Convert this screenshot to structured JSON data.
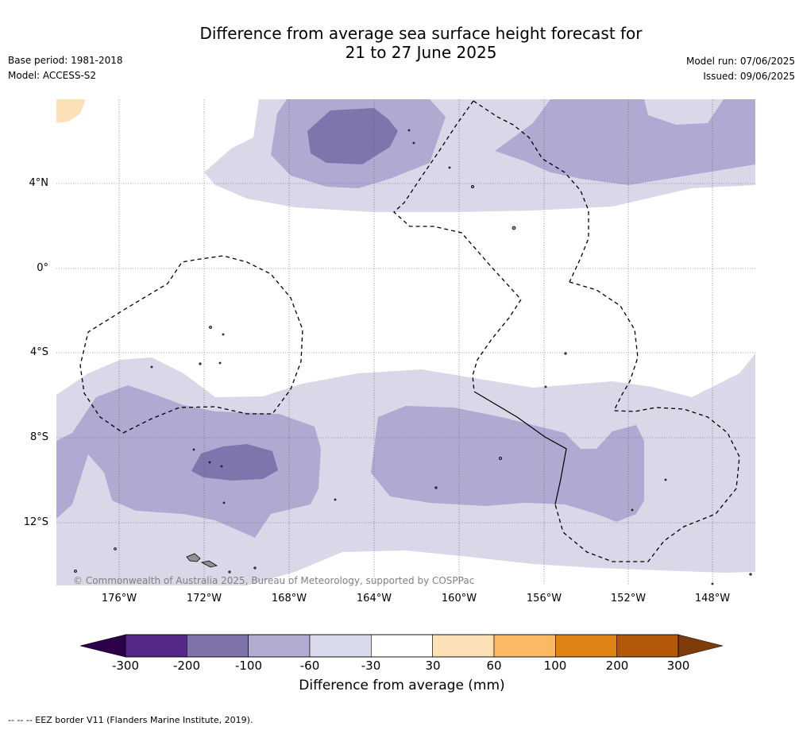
{
  "header": {
    "title_line1": "Difference from average sea surface height forecast for",
    "title_line2": "21 to 27 June 2025",
    "base_period": "Base period: 1981-2018",
    "model": "Model: ACCESS-S2",
    "model_run": "Model run: 07/06/2025",
    "issued": "Issued: 09/06/2025"
  },
  "map": {
    "lat_labels": [
      "4°N",
      "0°",
      "4°S",
      "8°S",
      "12°S"
    ],
    "lon_labels": [
      "176°W",
      "172°W",
      "168°W",
      "164°W",
      "160°W",
      "156°W",
      "152°W",
      "148°W"
    ],
    "copyright": "© Commonwealth of Australia 2025, Bureau of Meteorology, supported by COSPPac",
    "grid": true,
    "colors": {
      "light_purple": "#d8d8e9",
      "mid_purple": "#b0aad2",
      "dark_purple": "#8074ad",
      "light_orange": "#fee0b6",
      "land": "#909090"
    }
  },
  "colorbar": {
    "ticks": [
      "-300",
      "-200",
      "-100",
      "-60",
      "-30",
      "30",
      "60",
      "100",
      "200",
      "300"
    ],
    "colors": [
      "#2d004b",
      "#542788",
      "#8073ac",
      "#b2abd2",
      "#d8daeb",
      "#ffffff",
      "#fee0b6",
      "#fdb863",
      "#e08214",
      "#b35806",
      "#7f3b08"
    ],
    "label": "Difference from average (mm)"
  },
  "footnote": "--  --  -- EEZ border V11 (Flanders Marine Institute, 2019)."
}
